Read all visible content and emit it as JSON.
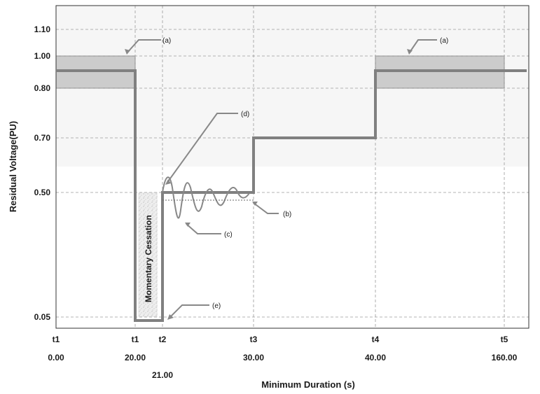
{
  "chart_data": {
    "type": "line",
    "title": "",
    "xlabel": "Minimum Duration (s)",
    "ylabel": "Residual Voltage(PU)",
    "y_ticks": [
      "1.10",
      "1.00",
      "0.80",
      "0.70",
      "0.50",
      "0.05"
    ],
    "x_time_labels": [
      "t1",
      "t1",
      "t2",
      "t3",
      "t4",
      "t5"
    ],
    "x_value_labels": [
      "0.00",
      "20.00",
      "21.00",
      "30.00",
      "40.00",
      "160.00"
    ],
    "x_ticks": [
      {
        "time": "t1",
        "value": "0.00"
      },
      {
        "time": "t1",
        "value": "20.00"
      },
      {
        "time": "t2",
        "value": "21.00"
      },
      {
        "time": "t3",
        "value": "30.00"
      },
      {
        "time": "t4",
        "value": "40.00"
      },
      {
        "time": "t5",
        "value": "160.00"
      }
    ],
    "series": [
      {
        "points": [
          {
            "x": "0.00",
            "y": 0.9
          },
          {
            "x": "20.00",
            "y": 0.9
          },
          {
            "x": "20.00",
            "y": 0.04
          },
          {
            "x": "21.00",
            "y": 0.04
          },
          {
            "x": "21.00",
            "y": 0.5
          },
          {
            "x": "30.00",
            "y": 0.5
          },
          {
            "x": "30.00",
            "y": 0.7
          },
          {
            "x": "40.00",
            "y": 0.7
          },
          {
            "x": "40.00",
            "y": 0.9
          },
          {
            "x": "160.00",
            "y": 0.9
          }
        ]
      }
    ],
    "shaded_bands": [
      {
        "x_from": "0.00",
        "x_to": "20.00",
        "y_from": 0.8,
        "y_to": 1.0
      },
      {
        "x_from": "40.00",
        "x_to": "160.00",
        "y_from": 0.8,
        "y_to": 1.0
      }
    ],
    "momentary_cessation_label": "Momentary Cessation",
    "annotations": [
      "(a)",
      "(a)",
      "(b)",
      "(c)",
      "(d)",
      "(e)"
    ],
    "grid": true,
    "colors": {
      "line": "#808080",
      "band": "#cccccc",
      "grid": "#9a9a9a",
      "upper_background": "#f6f6f6"
    }
  }
}
